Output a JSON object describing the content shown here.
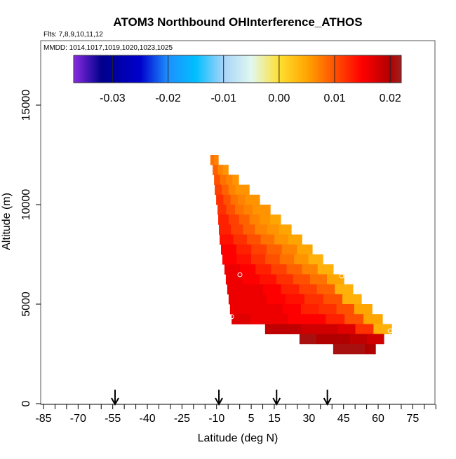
{
  "chart_data": {
    "type": "heatmap",
    "title": "ATOM3 Northbound OHInterference_ATHOS",
    "subtitle": "Flts: 7,8,9,10,11,12",
    "annotation": "MMDD: 1014,1017,1019,1020,1023,1025",
    "xlabel": "Latitude (deg N)",
    "ylabel": "Altitude (m)",
    "xlim": [
      -85,
      85
    ],
    "ylim": [
      0,
      15000
    ],
    "x_ticks": [
      -85,
      -70,
      -55,
      -40,
      -25,
      -10,
      5,
      15,
      30,
      45,
      60,
      75
    ],
    "x_minor_step": 5,
    "y_ticks": [
      0,
      5000,
      10000,
      15000
    ],
    "colorbar": {
      "range": [
        -0.037,
        0.022
      ],
      "ticks": [
        "-0.03",
        "-0.02",
        "-0.01",
        "0.00",
        "0.01",
        "0.02"
      ],
      "tick_values": [
        -0.03,
        -0.02,
        -0.01,
        0.0,
        0.01,
        0.02
      ],
      "colors": [
        [
          -0.037,
          "#8a2be2"
        ],
        [
          -0.032,
          "#00008b"
        ],
        [
          -0.025,
          "#0000cd"
        ],
        [
          -0.02,
          "#1e90ff"
        ],
        [
          -0.015,
          "#00bfff"
        ],
        [
          -0.01,
          "#a8d4f8"
        ],
        [
          -0.005,
          "#e0f8f0"
        ],
        [
          0.0,
          "#ffe030"
        ],
        [
          0.005,
          "#ffa500"
        ],
        [
          0.01,
          "#ff5000"
        ],
        [
          0.015,
          "#ff0000"
        ],
        [
          0.02,
          "#b00000"
        ],
        [
          0.022,
          "#a02020"
        ]
      ]
    },
    "alt_bin": 500,
    "rows": [
      {
        "alt": 12000,
        "lat": [
          -12.7,
          -9.3
        ],
        "values": [
          0.008,
          0.007
        ]
      },
      {
        "alt": 11500,
        "lat": [
          -11.7,
          -5.0
        ],
        "values": [
          0.009,
          0.007,
          0.006
        ]
      },
      {
        "alt": 11000,
        "lat": [
          -11.1,
          -0.5
        ],
        "values": [
          0.01,
          0.008,
          0.007,
          0.006
        ]
      },
      {
        "alt": 10500,
        "lat": [
          -10.8,
          4.1
        ],
        "values": [
          0.011,
          0.009,
          0.007,
          0.006,
          0.006
        ]
      },
      {
        "alt": 10000,
        "lat": [
          -10.2,
          8.6
        ],
        "values": [
          0.012,
          0.01,
          0.008,
          0.007,
          0.006,
          0.006
        ]
      },
      {
        "alt": 9500,
        "lat": [
          -9.6,
          13.2
        ],
        "values": [
          0.012,
          0.01,
          0.008,
          0.007,
          0.006,
          0.006
        ]
      },
      {
        "alt": 9000,
        "lat": [
          -9.3,
          17.7
        ],
        "values": [
          0.013,
          0.011,
          0.009,
          0.007,
          0.006,
          0.005
        ]
      },
      {
        "alt": 8500,
        "lat": [
          -9.0,
          22.3
        ],
        "values": [
          0.013,
          0.011,
          0.009,
          0.007,
          0.006,
          0.005
        ]
      },
      {
        "alt": 8000,
        "lat": [
          -8.7,
          26.9
        ],
        "values": [
          0.014,
          0.012,
          0.01,
          0.008,
          0.006,
          0.005
        ]
      },
      {
        "alt": 7500,
        "lat": [
          -8.1,
          31.4
        ],
        "values": [
          0.015,
          0.013,
          0.011,
          0.009,
          0.007,
          0.005
        ]
      },
      {
        "alt": 7000,
        "lat": [
          -7.5,
          36.0
        ],
        "values": [
          0.015,
          0.014,
          0.012,
          0.01,
          0.008,
          0.006,
          0.004
        ]
      },
      {
        "alt": 6500,
        "lat": [
          -6.6,
          40.5
        ],
        "values": [
          0.016,
          0.015,
          0.013,
          0.011,
          0.009,
          0.007,
          0.004
        ]
      },
      {
        "alt": 6000,
        "lat": [
          -6.0,
          45.1
        ],
        "values": [
          0.016,
          0.015,
          0.014,
          0.012,
          0.01,
          0.008,
          0.005
        ]
      },
      {
        "alt": 5500,
        "lat": [
          -5.4,
          49.0
        ],
        "values": [
          0.016,
          0.016,
          0.015,
          0.013,
          0.011,
          0.009,
          0.004
        ]
      },
      {
        "alt": 5000,
        "lat": [
          -4.8,
          52.7
        ],
        "values": [
          0.016,
          0.016,
          0.015,
          0.014,
          0.012,
          0.01,
          0.004
        ]
      },
      {
        "alt": 4500,
        "lat": [
          -4.2,
          57.3
        ],
        "values": [
          0.016,
          0.016,
          0.016,
          0.015,
          0.013,
          0.012,
          0.01,
          0.005
        ]
      },
      {
        "alt": 4000,
        "lat": [
          -3.5,
          61.8
        ],
        "values": [
          0.017,
          0.016,
          0.016,
          0.015,
          0.015,
          0.013,
          0.01,
          0.005
        ]
      },
      {
        "alt": 3500,
        "lat": [
          11.0,
          65.8
        ],
        "values": [
          0.019,
          0.019,
          0.018,
          0.018,
          0.017,
          0.012,
          0.004
        ]
      },
      {
        "alt": 3000,
        "lat": [
          25.9,
          62.4
        ],
        "values": [
          0.021,
          0.02,
          0.02,
          0.019,
          0.018
        ]
      },
      {
        "alt": 2500,
        "lat": [
          40.5,
          58.8
        ],
        "values": [
          0.021,
          0.021,
          0.021,
          0.02
        ]
      }
    ],
    "circles": [
      {
        "lat": 0.1,
        "alt": 6480
      },
      {
        "lat": -3.5,
        "alt": 4370
      },
      {
        "lat": 44.2,
        "alt": 6410
      },
      {
        "lat": 65.2,
        "alt": 3660
      }
    ],
    "arrows_lat": [
      -54,
      -9,
      16,
      38
    ]
  }
}
